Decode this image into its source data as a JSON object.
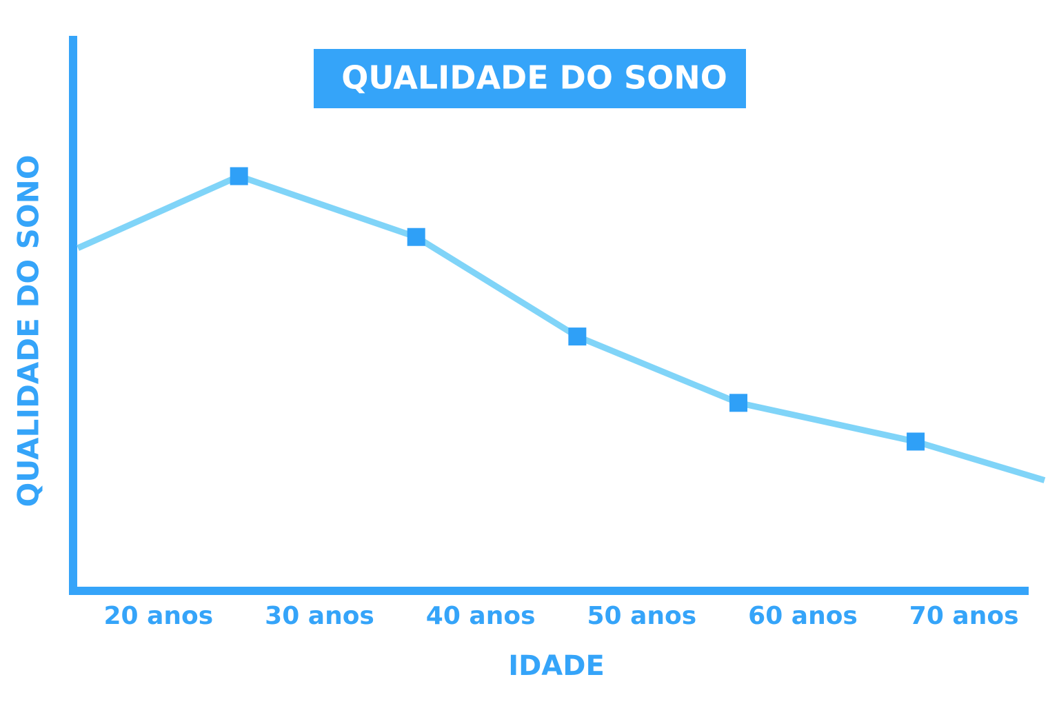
{
  "chart_data": {
    "type": "line",
    "title": "QUALIDADE DO SONO",
    "x_label": "IDADE",
    "y_label": "QUALIDADE DO SONO",
    "x": [
      15,
      25,
      36,
      46,
      56,
      67,
      75
    ],
    "series": [
      {
        "color": "#80d4f8",
        "marker_color": "#2fa0f7",
        "values": [
          62,
          75,
          64,
          46,
          34,
          27,
          20
        ]
      }
    ],
    "xlim": [
      15,
      75
    ],
    "ylim": [
      0,
      100
    ],
    "xticks": [
      {
        "value": 20,
        "label": "20 anos"
      },
      {
        "value": 30,
        "label": "30 anos"
      },
      {
        "value": 40,
        "label": "40 anos"
      },
      {
        "value": 50,
        "label": "50 anos"
      },
      {
        "value": 60,
        "label": "60 anos"
      },
      {
        "value": 70,
        "label": "70 anos"
      }
    ],
    "grid": false
  }
}
